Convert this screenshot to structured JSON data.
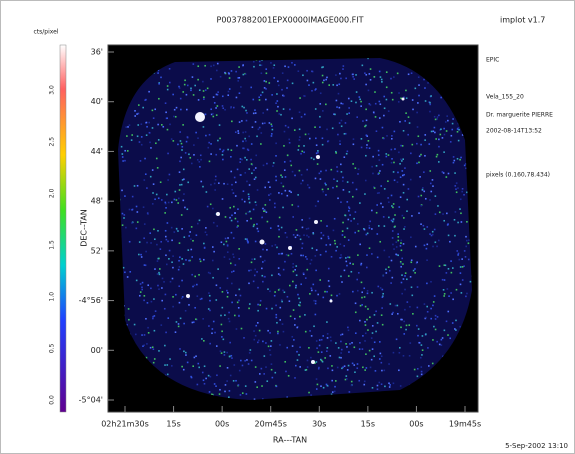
{
  "header": {
    "title": "P0037882001EPX0000IMAGE000.FIT",
    "program": "implot v1.7"
  },
  "colorbar": {
    "label": "cts/pixel",
    "ticks": [
      "3.0",
      "2.5",
      "2.0",
      "1.5",
      "1.0",
      "0.5",
      "0.0"
    ]
  },
  "axes": {
    "x_label": "RA---TAN",
    "y_label": "DEC--TAN",
    "x_ticks": [
      "02h21m30s",
      "15s",
      "00s",
      "20m45s",
      "30s",
      "15s",
      "00s",
      "19m45s"
    ],
    "y_ticks": [
      "36'",
      "40'",
      "44'",
      "48'",
      "52'",
      "-4°56'",
      "00'",
      "-5°04'"
    ]
  },
  "side_info": [
    "EPIC",
    "Vela_155_20",
    "Dr. marguerite PIERRE",
    "2002-08-14T13:52",
    "pixels (0.160,78.434)"
  ],
  "footer": {
    "date": "5-Sep-2002 13:10"
  }
}
